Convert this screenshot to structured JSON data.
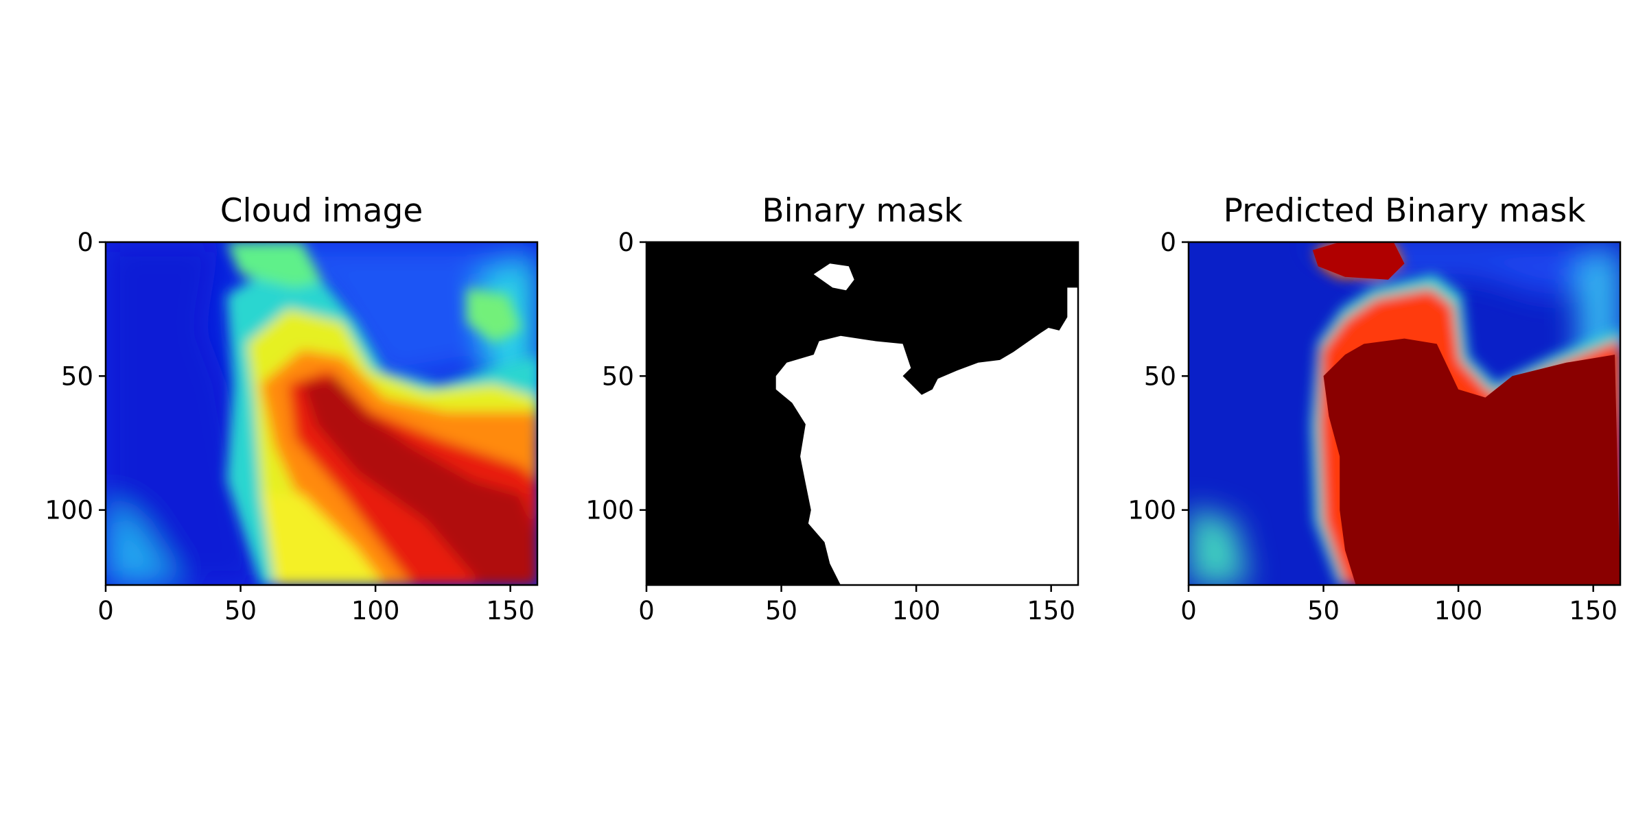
{
  "chart_data": [
    {
      "type": "heatmap",
      "title": "Cloud image",
      "xlabel": "",
      "ylabel": "",
      "colormap": "jet",
      "xlim": [
        0,
        160
      ],
      "ylim": [
        128,
        0
      ],
      "xticks": [
        0,
        50,
        100,
        150
      ],
      "yticks": [
        0,
        50,
        100
      ],
      "grid": false,
      "regions": [
        {
          "label": "low (blue)",
          "polygon": [
            [
              0,
              0
            ],
            [
              45,
              0
            ],
            [
              42,
              30
            ],
            [
              45,
              60
            ],
            [
              48,
              100
            ],
            [
              55,
              128
            ],
            [
              0,
              128
            ]
          ]
        },
        {
          "label": "high (red/yellow)",
          "polygon": [
            [
              50,
              55
            ],
            [
              60,
              40
            ],
            [
              90,
              38
            ],
            [
              100,
              55
            ],
            [
              130,
              55
            ],
            [
              160,
              45
            ],
            [
              160,
              128
            ],
            [
              60,
              128
            ],
            [
              55,
              100
            ]
          ]
        }
      ]
    },
    {
      "type": "heatmap",
      "title": "Binary mask",
      "xlabel": "",
      "ylabel": "",
      "colormap": "gray",
      "xlim": [
        0,
        160
      ],
      "ylim": [
        128,
        0
      ],
      "xticks": [
        0,
        50,
        100,
        150
      ],
      "yticks": [
        0,
        50,
        100
      ],
      "grid": false,
      "mask_value_1_regions": [
        {
          "label": "main cloud",
          "polygon": [
            [
              48,
              50
            ],
            [
              52,
              45
            ],
            [
              62,
              42
            ],
            [
              64,
              37
            ],
            [
              72,
              35
            ],
            [
              85,
              37
            ],
            [
              95,
              38
            ],
            [
              98,
              47
            ],
            [
              95,
              50
            ],
            [
              98,
              53
            ],
            [
              102,
              57
            ],
            [
              106,
              55
            ],
            [
              108,
              51
            ],
            [
              115,
              48
            ],
            [
              123,
              45
            ],
            [
              131,
              44
            ],
            [
              136,
              41
            ],
            [
              146,
              34
            ],
            [
              149,
              32
            ],
            [
              153,
              33
            ],
            [
              156,
              28
            ],
            [
              156,
              17
            ],
            [
              160,
              17
            ],
            [
              160,
              128
            ],
            [
              72,
              128
            ],
            [
              68,
              120
            ],
            [
              66,
              112
            ],
            [
              60,
              105
            ],
            [
              61,
              100
            ],
            [
              59,
              90
            ],
            [
              57,
              80
            ],
            [
              59,
              68
            ],
            [
              54,
              60
            ],
            [
              48,
              55
            ]
          ]
        },
        {
          "label": "small cloud",
          "polygon": [
            [
              62,
              12
            ],
            [
              68,
              8
            ],
            [
              75,
              9
            ],
            [
              77,
              14
            ],
            [
              74,
              18
            ],
            [
              69,
              17
            ]
          ]
        }
      ]
    },
    {
      "type": "heatmap",
      "title": "Predicted Binary mask",
      "xlabel": "",
      "ylabel": "",
      "colormap": "jet",
      "xlim": [
        0,
        160
      ],
      "ylim": [
        128,
        0
      ],
      "xticks": [
        0,
        50,
        100,
        150
      ],
      "yticks": [
        0,
        50,
        100
      ],
      "grid": false,
      "high_regions": [
        {
          "label": "main cloud",
          "polygon": [
            [
              50,
              50
            ],
            [
              58,
              42
            ],
            [
              65,
              38
            ],
            [
              80,
              36
            ],
            [
              92,
              38
            ],
            [
              100,
              55
            ],
            [
              110,
              58
            ],
            [
              120,
              50
            ],
            [
              140,
              45
            ],
            [
              158,
              42
            ],
            [
              160,
              128
            ],
            [
              62,
              128
            ],
            [
              58,
              115
            ],
            [
              56,
              100
            ],
            [
              56,
              80
            ],
            [
              52,
              65
            ]
          ]
        },
        {
          "label": "top cloud",
          "polygon": [
            [
              46,
              3
            ],
            [
              56,
              0
            ],
            [
              76,
              0
            ],
            [
              80,
              8
            ],
            [
              74,
              14
            ],
            [
              58,
              13
            ],
            [
              48,
              9
            ]
          ]
        }
      ]
    }
  ]
}
